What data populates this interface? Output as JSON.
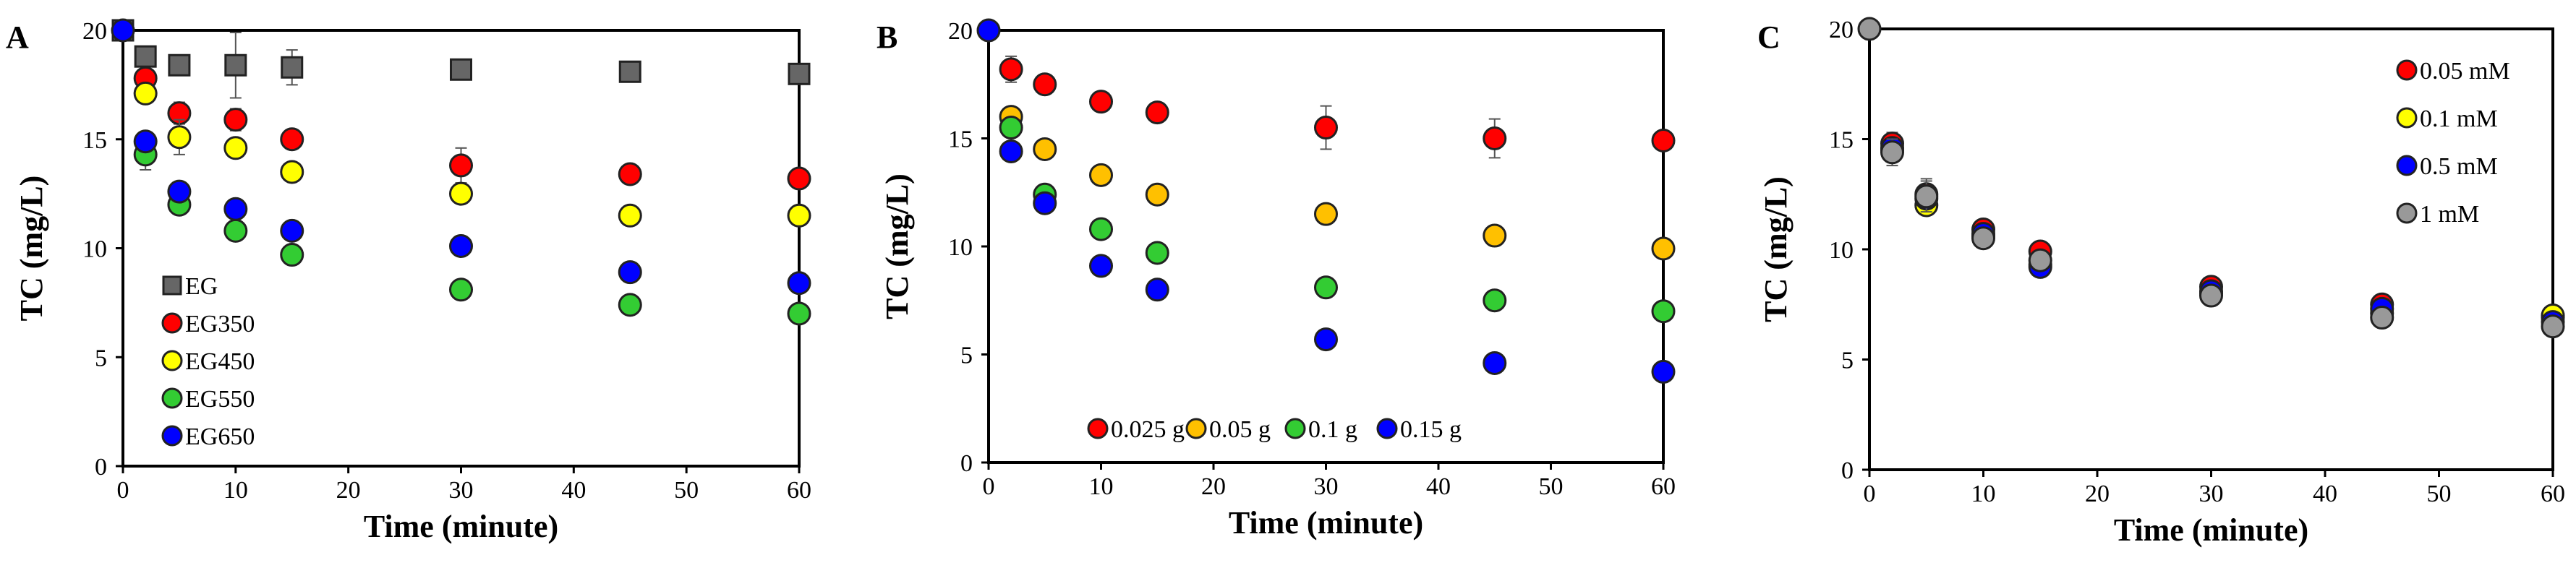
{
  "figure": {
    "panels": [
      {
        "letter": "A"
      },
      {
        "letter": "B"
      },
      {
        "letter": "C"
      }
    ]
  },
  "chart_data": [
    {
      "type": "scatter",
      "panel": "A",
      "title": "",
      "xlabel": "Time (minute)",
      "ylabel": "TC (mg/L)",
      "xlim": [
        0,
        60
      ],
      "ylim": [
        0,
        20
      ],
      "xticks": [
        0,
        10,
        20,
        30,
        40,
        50,
        60
      ],
      "yticks": [
        0,
        5,
        10,
        15,
        20
      ],
      "grid": false,
      "legend_position": "bottom-left",
      "series": [
        {
          "name": "EG",
          "marker": "square",
          "color": "#666666",
          "x": [
            0,
            2,
            5,
            10,
            15,
            30,
            45,
            60
          ],
          "y": [
            20,
            18.8,
            18.4,
            18.4,
            18.3,
            18.2,
            18.1,
            18.0
          ],
          "err": [
            0,
            0.4,
            0.3,
            1.5,
            0.8,
            0,
            0,
            0
          ]
        },
        {
          "name": "EG350",
          "marker": "circle",
          "color": "#ff0000",
          "x": [
            2,
            5,
            10,
            15,
            30,
            45,
            60
          ],
          "y": [
            17.8,
            16.2,
            15.9,
            15.0,
            13.8,
            13.4,
            13.2
          ],
          "err": [
            0,
            0.5,
            0.5,
            0.2,
            0.8,
            0.3,
            0.3
          ]
        },
        {
          "name": "EG450",
          "marker": "circle",
          "color": "#ffff00",
          "x": [
            2,
            5,
            10,
            15,
            30,
            45,
            60
          ],
          "y": [
            17.1,
            15.1,
            14.6,
            13.5,
            12.5,
            11.5,
            11.5
          ],
          "err": [
            0,
            0.8,
            0,
            0,
            0,
            0,
            0
          ]
        },
        {
          "name": "EG550",
          "marker": "circle",
          "color": "#33cc33",
          "x": [
            2,
            5,
            10,
            15,
            30,
            45,
            60
          ],
          "y": [
            14.3,
            12.0,
            10.8,
            9.7,
            8.1,
            7.4,
            7.0
          ],
          "err": [
            0.7,
            0,
            0,
            0,
            0,
            0,
            0
          ]
        },
        {
          "name": "EG650",
          "marker": "circle",
          "color": "#0000ff",
          "x": [
            0,
            2,
            5,
            10,
            15,
            30,
            45,
            60
          ],
          "y": [
            20,
            14.9,
            12.6,
            11.8,
            10.8,
            10.1,
            8.9,
            8.4
          ],
          "err": [
            0,
            0,
            0,
            0,
            0,
            0,
            0.4,
            0
          ]
        }
      ]
    },
    {
      "type": "scatter",
      "panel": "B",
      "title": "",
      "xlabel": "Time (minute)",
      "ylabel": "TC (mg/L)",
      "xlim": [
        0,
        60
      ],
      "ylim": [
        0,
        20
      ],
      "xticks": [
        0,
        10,
        20,
        30,
        40,
        50,
        60
      ],
      "yticks": [
        0,
        5,
        10,
        15,
        20
      ],
      "grid": false,
      "legend_position": "bottom",
      "series": [
        {
          "name": "0.025 g",
          "marker": "circle",
          "color": "#ff0000",
          "x": [
            2,
            5,
            10,
            15,
            30,
            45,
            60
          ],
          "y": [
            18.2,
            17.5,
            16.7,
            16.2,
            15.5,
            15.0,
            14.9
          ],
          "err": [
            0.6,
            0.4,
            0,
            0,
            1.0,
            0.9,
            0
          ]
        },
        {
          "name": "0.05 g",
          "marker": "circle",
          "color": "#ffc000",
          "x": [
            2,
            5,
            10,
            15,
            30,
            45,
            60
          ],
          "y": [
            16.0,
            14.5,
            13.3,
            12.4,
            11.5,
            10.5,
            9.9
          ],
          "err": [
            0,
            0,
            0,
            0,
            0,
            0,
            0
          ]
        },
        {
          "name": "0.1 g",
          "marker": "circle",
          "color": "#33cc33",
          "x": [
            2,
            5,
            10,
            15,
            30,
            45,
            60
          ],
          "y": [
            15.5,
            12.4,
            10.8,
            9.7,
            8.1,
            7.5,
            7.0
          ],
          "err": [
            0,
            0,
            0,
            0,
            0,
            0,
            0
          ]
        },
        {
          "name": "0.15 g",
          "marker": "circle",
          "color": "#0000ff",
          "x": [
            0,
            2,
            5,
            10,
            15,
            30,
            45,
            60
          ],
          "y": [
            20,
            14.4,
            12.0,
            9.1,
            8.0,
            5.7,
            4.6,
            4.2
          ],
          "err": [
            0,
            0,
            0,
            0,
            0,
            0,
            0,
            0
          ]
        }
      ]
    },
    {
      "type": "scatter",
      "panel": "C",
      "title": "",
      "xlabel": "Time (minute)",
      "ylabel": "TC (mg/L)",
      "xlim": [
        0,
        60
      ],
      "ylim": [
        0,
        20
      ],
      "xticks": [
        0,
        10,
        20,
        30,
        40,
        50,
        60
      ],
      "yticks": [
        0,
        5,
        10,
        15,
        20
      ],
      "grid": false,
      "legend_position": "top-right",
      "series": [
        {
          "name": "0.05 mM",
          "marker": "circle",
          "color": "#ff0000",
          "x": [
            2,
            5,
            10,
            15,
            30,
            45,
            60
          ],
          "y": [
            14.8,
            12.5,
            10.9,
            9.9,
            8.3,
            7.5,
            6.9
          ],
          "err": [
            0.5,
            0.7,
            0,
            0,
            0,
            0,
            0
          ]
        },
        {
          "name": "0.1 mM",
          "marker": "circle",
          "color": "#ffff00",
          "x": [
            2,
            5,
            10,
            15,
            30,
            45,
            60
          ],
          "y": [
            14.5,
            12.0,
            10.6,
            9.3,
            8.0,
            7.1,
            7.0
          ],
          "err": [
            0,
            0,
            0,
            0,
            0,
            0,
            0
          ]
        },
        {
          "name": "0.5 mM",
          "marker": "circle",
          "color": "#0000ff",
          "x": [
            2,
            5,
            10,
            15,
            30,
            45,
            60
          ],
          "y": [
            14.6,
            12.3,
            10.7,
            9.2,
            8.1,
            7.3,
            6.7
          ],
          "err": [
            0,
            0,
            0,
            0,
            0,
            0,
            0
          ]
        },
        {
          "name": "1 mM",
          "marker": "circle",
          "color": "#999999",
          "x": [
            0,
            2,
            5,
            10,
            15,
            30,
            45,
            60
          ],
          "y": [
            20,
            14.4,
            12.4,
            10.5,
            9.5,
            7.9,
            6.9,
            6.5
          ],
          "err": [
            0,
            0.6,
            0.7,
            0,
            0,
            0,
            0,
            0
          ]
        }
      ]
    }
  ]
}
